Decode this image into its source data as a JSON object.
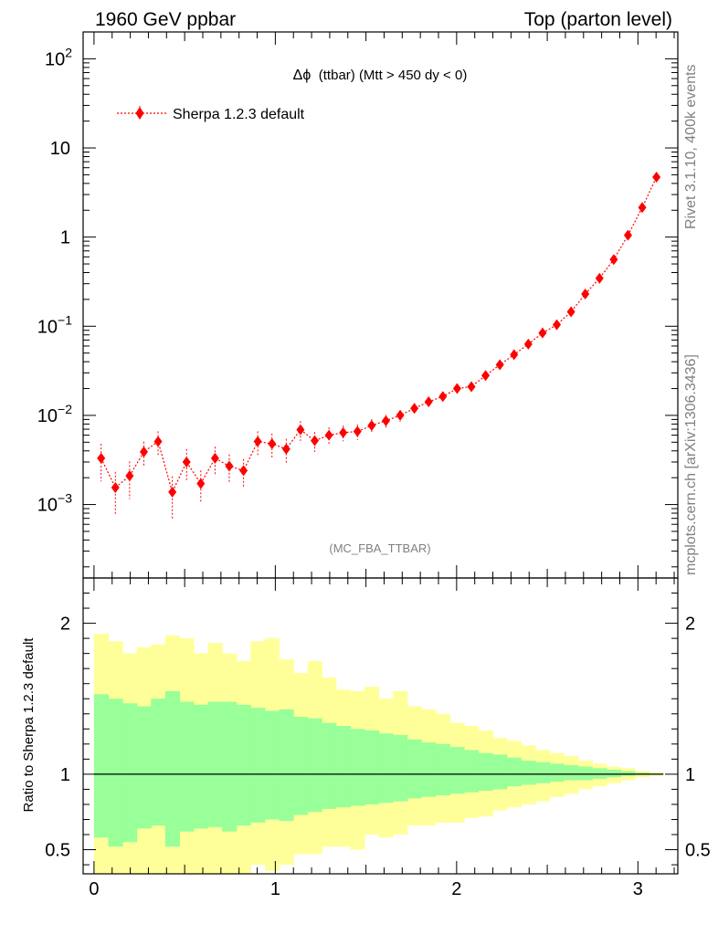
{
  "header": {
    "left": "1960 GeV ppbar",
    "right": "Top (parton level)"
  },
  "side": {
    "rivet": "Rivet 3.1.10,  400k events",
    "mcplots": "mcplots.cern.ch [arXiv:1306.3436]"
  },
  "main_plot": {
    "title_prefix": "Δϕ",
    "title_suffix": "(ttbar) (Mtt > 450 dy < 0)",
    "watermark": "(MC_FBA_TTBAR)",
    "legend_label": "Sherpa 1.2.3 default"
  },
  "ratio_plot": {
    "ylabel": "Ratio to Sherpa 1.2.3 default"
  },
  "colors": {
    "series": "#ff0000",
    "band_inner": "#99ff99",
    "band_outer": "#ffff99"
  },
  "chart_data": [
    {
      "type": "scatter",
      "yscale": "log",
      "xlim": [
        -0.06,
        3.22
      ],
      "ylim": [
        0.00015,
        200
      ],
      "x_ticks": [
        0,
        1,
        2,
        3
      ],
      "y_ticks": [
        {
          "value": 0.001,
          "base": "10",
          "exp": "−3"
        },
        {
          "value": 0.01,
          "base": "10",
          "exp": "−2"
        },
        {
          "value": 0.1,
          "base": "10",
          "exp": "−1"
        },
        {
          "value": 1,
          "label": "1"
        },
        {
          "value": 10,
          "label": "10"
        },
        {
          "value": 100,
          "base": "10",
          "exp": "2"
        }
      ],
      "series": [
        {
          "name": "Sherpa 1.2.3 default",
          "x": [
            0.0393,
            0.1178,
            0.1963,
            0.2749,
            0.3534,
            0.432,
            0.5105,
            0.589,
            0.6676,
            0.7461,
            0.8247,
            0.9032,
            0.9817,
            1.0603,
            1.1388,
            1.2174,
            1.2959,
            1.3744,
            1.453,
            1.5315,
            1.6101,
            1.6886,
            1.7671,
            1.8457,
            1.9242,
            2.0028,
            2.0813,
            2.1598,
            2.2384,
            2.3169,
            2.3955,
            2.474,
            2.5525,
            2.6311,
            2.7096,
            2.7882,
            2.8667,
            2.9452,
            3.0238,
            3.1023
          ],
          "y": [
            0.0033,
            0.00155,
            0.0021,
            0.0039,
            0.0051,
            0.00138,
            0.003,
            0.00172,
            0.0033,
            0.0027,
            0.0024,
            0.0051,
            0.0048,
            0.0042,
            0.0069,
            0.0052,
            0.006,
            0.0064,
            0.0066,
            0.0077,
            0.0087,
            0.01,
            0.012,
            0.0142,
            0.0163,
            0.02,
            0.021,
            0.028,
            0.037,
            0.048,
            0.063,
            0.084,
            0.104,
            0.145,
            0.23,
            0.345,
            0.56,
            1.05,
            2.15,
            4.7
          ],
          "yerr_rel": [
            0.45,
            0.5,
            0.45,
            0.3,
            0.3,
            0.5,
            0.4,
            0.4,
            0.35,
            0.35,
            0.35,
            0.3,
            0.3,
            0.3,
            0.25,
            0.25,
            0.22,
            0.2,
            0.2,
            0.18,
            0.16,
            0.15,
            0.14,
            0.12,
            0.11,
            0.1,
            0.1,
            0.08,
            0.07,
            0.06,
            0.05,
            0.04,
            0.04,
            0.03,
            0.025,
            0.02,
            0.016,
            0.012,
            0.008,
            0.005
          ]
        }
      ]
    },
    {
      "type": "area",
      "xlim": [
        -0.06,
        3.22
      ],
      "ylim": [
        0.34,
        2.3
      ],
      "x_ticks": [
        0,
        1,
        2,
        3
      ],
      "y_ticks": [
        {
          "value": 0.5,
          "label": "0.5"
        },
        {
          "value": 1,
          "label": "1"
        },
        {
          "value": 2,
          "label": "2"
        }
      ],
      "bin_width": 0.0785,
      "series": [
        {
          "name": "Sherpa 1.2.3 default",
          "reference": 1,
          "inner_band": [
            [
              0.58,
              1.53
            ],
            [
              0.52,
              1.5
            ],
            [
              0.55,
              1.47
            ],
            [
              0.64,
              1.45
            ],
            [
              0.66,
              1.5
            ],
            [
              0.52,
              1.55
            ],
            [
              0.62,
              1.48
            ],
            [
              0.64,
              1.46
            ],
            [
              0.65,
              1.48
            ],
            [
              0.62,
              1.48
            ],
            [
              0.66,
              1.46
            ],
            [
              0.68,
              1.44
            ],
            [
              0.7,
              1.42
            ],
            [
              0.69,
              1.43
            ],
            [
              0.73,
              1.38
            ],
            [
              0.75,
              1.37
            ],
            [
              0.77,
              1.34
            ],
            [
              0.78,
              1.32
            ],
            [
              0.79,
              1.3
            ],
            [
              0.8,
              1.29
            ],
            [
              0.81,
              1.27
            ],
            [
              0.82,
              1.26
            ],
            [
              0.84,
              1.23
            ],
            [
              0.85,
              1.21
            ],
            [
              0.86,
              1.2
            ],
            [
              0.87,
              1.18
            ],
            [
              0.88,
              1.16
            ],
            [
              0.89,
              1.14
            ],
            [
              0.9,
              1.13
            ],
            [
              0.92,
              1.11
            ],
            [
              0.93,
              1.09
            ],
            [
              0.94,
              1.08
            ],
            [
              0.95,
              1.07
            ],
            [
              0.96,
              1.06
            ],
            [
              0.96,
              1.05
            ],
            [
              0.97,
              1.04
            ],
            [
              0.98,
              1.03
            ],
            [
              0.99,
              1.02
            ],
            [
              0.995,
              1.01
            ],
            [
              0.998,
              1.005
            ]
          ],
          "outer_band": [
            [
              0.2,
              1.93
            ],
            [
              0.2,
              1.88
            ],
            [
              0.25,
              1.8
            ],
            [
              0.34,
              1.84
            ],
            [
              0.34,
              1.86
            ],
            [
              0.2,
              1.92
            ],
            [
              0.28,
              1.9
            ],
            [
              0.3,
              1.8
            ],
            [
              0.29,
              1.87
            ],
            [
              0.26,
              1.8
            ],
            [
              0.3,
              1.75
            ],
            [
              0.4,
              1.88
            ],
            [
              0.36,
              1.9
            ],
            [
              0.4,
              1.76
            ],
            [
              0.47,
              1.67
            ],
            [
              0.47,
              1.75
            ],
            [
              0.52,
              1.64
            ],
            [
              0.52,
              1.56
            ],
            [
              0.5,
              1.55
            ],
            [
              0.6,
              1.58
            ],
            [
              0.58,
              1.5
            ],
            [
              0.6,
              1.55
            ],
            [
              0.66,
              1.45
            ],
            [
              0.66,
              1.43
            ],
            [
              0.68,
              1.4
            ],
            [
              0.68,
              1.34
            ],
            [
              0.71,
              1.32
            ],
            [
              0.72,
              1.29
            ],
            [
              0.76,
              1.24
            ],
            [
              0.78,
              1.22
            ],
            [
              0.8,
              1.19
            ],
            [
              0.82,
              1.16
            ],
            [
              0.85,
              1.14
            ],
            [
              0.87,
              1.12
            ],
            [
              0.9,
              1.09
            ],
            [
              0.92,
              1.07
            ],
            [
              0.94,
              1.05
            ],
            [
              0.96,
              1.04
            ],
            [
              0.98,
              1.02
            ],
            [
              0.99,
              1.01
            ]
          ]
        }
      ]
    }
  ]
}
